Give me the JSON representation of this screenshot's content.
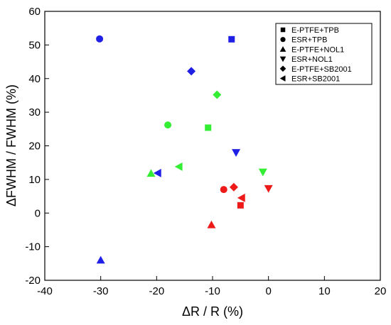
{
  "chart_data": {
    "type": "scatter",
    "xlabel": "ΔR / R (%)",
    "ylabel": "ΔFWHM / FWHM (%)",
    "xlim": [
      -40,
      20
    ],
    "ylim": [
      -20,
      60
    ],
    "xticks": [
      -40,
      -30,
      -20,
      -10,
      0,
      10,
      20
    ],
    "yticks": [
      -20,
      -10,
      0,
      10,
      20,
      30,
      40,
      50,
      60
    ],
    "grid": false,
    "legend_position": "top-right",
    "series": [
      {
        "name": "E-PTFE+TPB",
        "marker": "square",
        "points": [
          {
            "x": -6.6,
            "y": 51.7,
            "color": "blue"
          },
          {
            "x": -10.8,
            "y": 25.4,
            "color": "green"
          },
          {
            "x": -5.0,
            "y": 2.3,
            "color": "red"
          }
        ]
      },
      {
        "name": "ESR+TPB",
        "marker": "circle",
        "points": [
          {
            "x": -30.2,
            "y": 51.8,
            "color": "blue"
          },
          {
            "x": -18.0,
            "y": 26.2,
            "color": "green"
          },
          {
            "x": -8.0,
            "y": 7.0,
            "color": "red"
          }
        ]
      },
      {
        "name": "E-PTFE+NOL1",
        "marker": "triangle-up",
        "points": [
          {
            "x": -30.0,
            "y": -14.0,
            "color": "blue"
          },
          {
            "x": -21.0,
            "y": 11.8,
            "color": "green"
          },
          {
            "x": -10.2,
            "y": -3.5,
            "color": "red"
          }
        ]
      },
      {
        "name": "ESR+NOL1",
        "marker": "triangle-down",
        "points": [
          {
            "x": -5.8,
            "y": 18.0,
            "color": "blue"
          },
          {
            "x": -1.0,
            "y": 12.2,
            "color": "green"
          },
          {
            "x": 0.0,
            "y": 7.3,
            "color": "red"
          }
        ]
      },
      {
        "name": "E-PTFE+SB2001",
        "marker": "diamond",
        "points": [
          {
            "x": -13.8,
            "y": 42.2,
            "color": "blue"
          },
          {
            "x": -9.2,
            "y": 35.2,
            "color": "green"
          },
          {
            "x": -6.2,
            "y": 7.7,
            "color": "red"
          }
        ]
      },
      {
        "name": "ESR+SB2001",
        "marker": "triangle-left",
        "points": [
          {
            "x": -19.8,
            "y": 11.9,
            "color": "blue"
          },
          {
            "x": -16.0,
            "y": 13.8,
            "color": "green"
          },
          {
            "x": -4.8,
            "y": 4.5,
            "color": "red"
          }
        ]
      }
    ],
    "colors": {
      "blue": "#1f1fe6",
      "green": "#33ee33",
      "red": "#ee1a1a"
    }
  }
}
